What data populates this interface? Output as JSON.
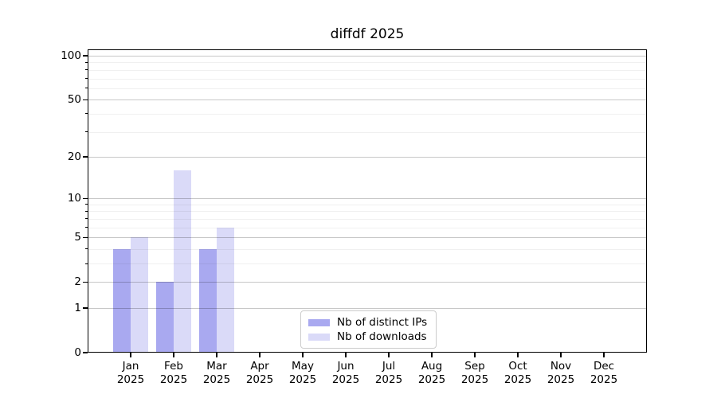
{
  "chart_data": {
    "type": "bar",
    "title": "diffdf 2025",
    "categories": [
      "Jan",
      "Feb",
      "Mar",
      "Apr",
      "May",
      "Jun",
      "Jul",
      "Aug",
      "Sep",
      "Oct",
      "Nov",
      "Dec"
    ],
    "x_year_label": "2025",
    "series": [
      {
        "name": "Nb of distinct IPs",
        "color": "#a9a9f0",
        "values": [
          4,
          2,
          4,
          0,
          0,
          0,
          0,
          0,
          0,
          0,
          0,
          0
        ]
      },
      {
        "name": "Nb of downloads",
        "color": "#dadaf8",
        "values": [
          5,
          16,
          6,
          0,
          0,
          0,
          0,
          0,
          0,
          0,
          0,
          0
        ]
      }
    ],
    "yscale": "log1p",
    "ylim": [
      0,
      110.5
    ],
    "y_major_ticks": [
      0,
      1,
      2,
      5,
      10,
      20,
      50,
      100
    ],
    "y_minor_ticks": [
      3,
      4,
      6,
      7,
      8,
      9,
      30,
      40,
      60,
      70,
      80,
      90
    ],
    "grid": true,
    "legend_position": "lower center",
    "colors": {
      "major_grid": "rgba(0,0,0,0.22)",
      "minor_grid": "rgba(0,0,0,0.06)",
      "spine": "#000000",
      "text": "#000000",
      "background": "#ffffff"
    }
  }
}
